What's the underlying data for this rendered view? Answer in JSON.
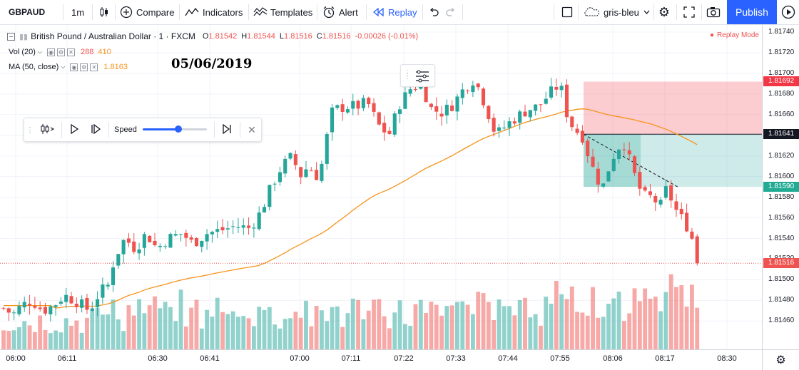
{
  "toolbar": {
    "symbol": "GBPAUD",
    "interval": "1m",
    "compare": "Compare",
    "indicators": "Indicators",
    "templates": "Templates",
    "alert": "Alert",
    "replay": "Replay",
    "layout_name": "gris-bleu",
    "publish": "Publish"
  },
  "legend": {
    "title": "British Pound / Australian Dollar · 1 · FXCM",
    "o_label": "O",
    "o": "1.81542",
    "h_label": "H",
    "h": "1.81544",
    "l_label": "L",
    "l": "1.81516",
    "c_label": "C",
    "c": "1.81516",
    "change": "-0.00026 (-0.01%)",
    "vol_label": "Vol (20)",
    "vol_value1": "288",
    "vol_value2": "410",
    "ma_label": "MA (50, close)",
    "ma_value": "1.8163",
    "replay_mode": "Replay Mode"
  },
  "date_annotation": "05/06/2019",
  "replay_bar": {
    "speed_label": "Speed",
    "speed_fraction": 0.55
  },
  "price_axis": {
    "labels": [
      "1.81740",
      "1.81720",
      "1.81700",
      "1.81680",
      "1.81660",
      "1.81640",
      "1.81620",
      "1.81600",
      "1.81580",
      "1.81560",
      "1.81540",
      "1.81520",
      "1.81500",
      "1.81480",
      "1.81460"
    ],
    "tags": [
      {
        "value": "1.81692",
        "color": "#f23645"
      },
      {
        "value": "1.81641",
        "color": "#131722"
      },
      {
        "value": "1.81590",
        "color": "#22ab94"
      },
      {
        "value": "1.81516",
        "color": "#ef5350"
      }
    ]
  },
  "time_axis": {
    "labels": [
      "06:00",
      "06:11",
      "06:30",
      "06:41",
      "07:00",
      "07:11",
      "07:22",
      "07:33",
      "07:44",
      "07:55",
      "08:06",
      "08:17",
      "08:30"
    ]
  },
  "colors": {
    "up": "#26a69a",
    "down": "#ef5350",
    "ma": "#f7931a",
    "accent": "#2962ff"
  }
}
